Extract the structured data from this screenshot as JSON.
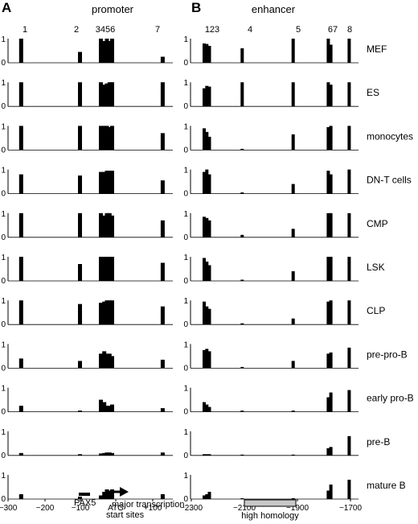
{
  "figure": {
    "panels": [
      {
        "letter": "A",
        "title": "promoter"
      },
      {
        "letter": "B",
        "title": "enhancer"
      }
    ]
  },
  "annotations": {
    "pax5": "PAX5",
    "atg": "ATG",
    "tss_line1": "major transcription",
    "tss_line2": "start sites",
    "homology": "high homology"
  },
  "chart_data": [
    {
      "type": "bar",
      "panel": "A",
      "title": "promoter",
      "xlim": [
        -300,
        140
      ],
      "ylim": [
        0,
        1
      ],
      "y_ticks": [
        "0",
        "1"
      ],
      "x_ticks": [
        "−300",
        "−200",
        "−100",
        "ATG",
        "+100"
      ],
      "site_labels": [
        "1",
        "2",
        "3456",
        "7"
      ],
      "site_positions": [
        -265,
        -108,
        -52,
        -43,
        -36,
        -29,
        -22,
        113
      ],
      "rows": [
        {
          "name": "MEF",
          "values": [
            1.0,
            0.45,
            1.0,
            0.9,
            1.0,
            0.9,
            1.0,
            0.25
          ]
        },
        {
          "name": "ES",
          "values": [
            1.0,
            1.0,
            1.0,
            0.9,
            0.95,
            1.0,
            1.0,
            1.0
          ]
        },
        {
          "name": "monocytes",
          "values": [
            1.0,
            1.0,
            1.0,
            1.0,
            1.0,
            0.95,
            1.0,
            0.7
          ]
        },
        {
          "name": "DN-T cells",
          "values": [
            0.8,
            0.75,
            0.9,
            0.9,
            0.95,
            0.95,
            0.95,
            0.55
          ]
        },
        {
          "name": "CMP",
          "values": [
            1.0,
            1.0,
            1.0,
            0.9,
            1.0,
            1.0,
            0.9,
            0.7
          ]
        },
        {
          "name": "LSK",
          "values": [
            1.0,
            0.7,
            1.0,
            1.0,
            1.0,
            1.0,
            1.0,
            0.75
          ]
        },
        {
          "name": "CLP",
          "values": [
            1.0,
            0.85,
            0.9,
            0.95,
            1.0,
            1.0,
            1.0,
            0.75
          ]
        },
        {
          "name": "pre-pro-B",
          "values": [
            0.4,
            0.3,
            0.6,
            0.7,
            0.6,
            0.6,
            0.5,
            0.35
          ]
        },
        {
          "name": "early pro-B",
          "values": [
            0.25,
            0.05,
            0.5,
            0.4,
            0.25,
            0.25,
            0.3,
            0.15
          ]
        },
        {
          "name": "pre-B",
          "values": [
            0.1,
            0.05,
            0.08,
            0.1,
            0.12,
            0.12,
            0.1,
            0.12
          ]
        },
        {
          "name": "mature B",
          "values": [
            0.2,
            0.1,
            0.15,
            0.3,
            0.4,
            0.35,
            0.4,
            0.2
          ]
        }
      ]
    },
    {
      "type": "bar",
      "panel": "B",
      "title": "enhancer",
      "xlim": [
        -2300,
        -1650
      ],
      "ylim": [
        0,
        1
      ],
      "y_ticks": [
        "0",
        "1"
      ],
      "x_ticks": [
        "−2300",
        "−2100",
        "−1900",
        "−1700"
      ],
      "site_labels": [
        "123",
        "4",
        "5",
        "67",
        "8"
      ],
      "site_positions": [
        -2247,
        -2237,
        -2227,
        -2100,
        -1903,
        -1767,
        -1757,
        -1686
      ],
      "rows": [
        {
          "name": "MEF",
          "values": [
            0.8,
            0.78,
            0.7,
            0.6,
            1.0,
            1.0,
            0.75,
            1.0
          ]
        },
        {
          "name": "ES",
          "values": [
            0.75,
            0.85,
            0.82,
            1.0,
            1.0,
            1.0,
            0.9,
            1.0
          ]
        },
        {
          "name": "monocytes",
          "values": [
            0.9,
            0.75,
            0.55,
            0.05,
            0.65,
            0.95,
            1.0,
            1.0
          ]
        },
        {
          "name": "DN-T cells",
          "values": [
            0.9,
            1.0,
            0.8,
            0.05,
            0.4,
            0.95,
            0.8,
            1.0
          ]
        },
        {
          "name": "CMP",
          "values": [
            0.85,
            0.8,
            0.7,
            0.1,
            0.35,
            1.0,
            1.0,
            1.0
          ]
        },
        {
          "name": "LSK",
          "values": [
            0.95,
            0.8,
            0.65,
            0.05,
            0.4,
            1.0,
            1.0,
            1.0
          ]
        },
        {
          "name": "CLP",
          "values": [
            0.95,
            0.75,
            0.65,
            0.05,
            0.25,
            0.95,
            1.0,
            1.0
          ]
        },
        {
          "name": "pre-pro-B",
          "values": [
            0.75,
            0.8,
            0.7,
            0.05,
            0.3,
            0.6,
            0.65,
            0.85
          ]
        },
        {
          "name": "early pro-B",
          "values": [
            0.4,
            0.3,
            0.2,
            0.05,
            0.05,
            0.6,
            0.8,
            0.9
          ]
        },
        {
          "name": "pre-B",
          "values": [
            0.05,
            0.05,
            0.05,
            0.02,
            0.02,
            0.3,
            0.35,
            0.8
          ]
        },
        {
          "name": "mature B",
          "values": [
            0.15,
            0.2,
            0.3,
            0.02,
            0.02,
            0.35,
            0.6,
            0.8
          ]
        }
      ]
    }
  ]
}
